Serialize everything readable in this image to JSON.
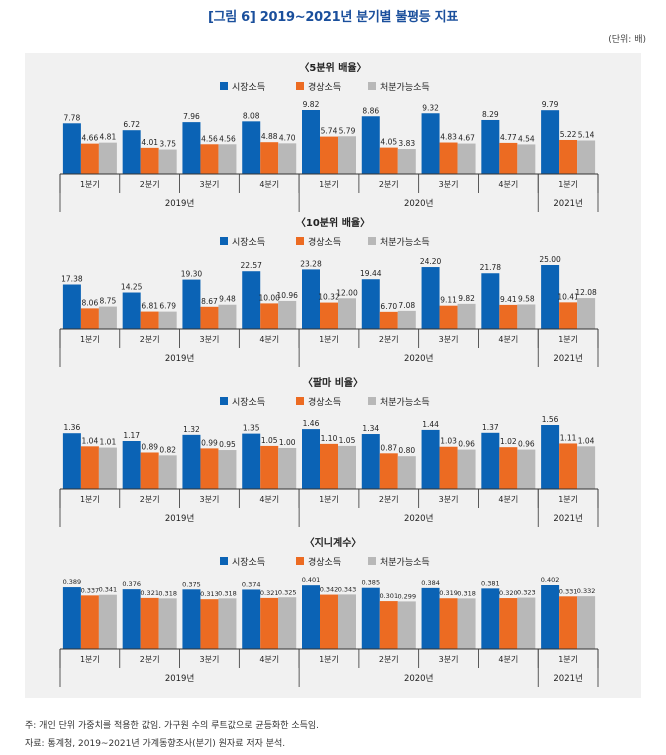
{
  "header": {
    "title": "[그림 6] 2019~2021년 분기별 불평등 지표",
    "unit": "(단위: 배)"
  },
  "footnotes": [
    "주: 개인 단위 가중치를 적용한 값임. 가구원 수의 루트값으로 균등화한 소득임.",
    "자료: 통계청, 2019~2021년 가계동향조사(분기) 원자료 저자 분석."
  ],
  "colors": {
    "market": "#0b63b5",
    "ordinary": "#ec6b22",
    "disposable": "#b8b8b8"
  },
  "chart_data": [
    {
      "type": "bar",
      "title": "〈5분위 배율〉",
      "categories": [
        "1분기",
        "2분기",
        "3분기",
        "4분기",
        "1분기",
        "2분기",
        "3분기",
        "4분기",
        "1분기"
      ],
      "year_groups": [
        {
          "label": "2019년",
          "count": 4
        },
        {
          "label": "2020년",
          "count": 4
        },
        {
          "label": "2021년",
          "count": 1
        }
      ],
      "series": [
        {
          "name": "시장소득",
          "values": [
            7.78,
            6.72,
            7.96,
            8.08,
            9.82,
            8.86,
            9.32,
            8.29,
            9.79
          ],
          "labels": [
            "7.78",
            "6.72",
            "7.96",
            "8.08",
            "9.82",
            "8.86",
            "9.32",
            "8.29",
            "9.79"
          ]
        },
        {
          "name": "경상소득",
          "values": [
            4.66,
            4.01,
            4.56,
            4.88,
            5.74,
            4.05,
            4.83,
            4.77,
            5.22
          ],
          "labels": [
            "4.66",
            "4.01",
            "4.56",
            "4.88",
            "5.74",
            "4.05",
            "4.83",
            "4.77",
            "5.22"
          ]
        },
        {
          "name": "처분가능소득",
          "values": [
            4.81,
            3.75,
            4.56,
            4.7,
            5.79,
            3.83,
            4.67,
            4.54,
            5.14
          ],
          "labels": [
            "4.81",
            "3.75",
            "4.56",
            "4.70",
            "5.79",
            "3.83",
            "4.67",
            "4.54",
            "5.14"
          ]
        }
      ],
      "ylim": [
        0,
        11
      ]
    },
    {
      "type": "bar",
      "title": "〈10분위 배율〉",
      "categories": [
        "1분기",
        "2분기",
        "3분기",
        "4분기",
        "1분기",
        "2분기",
        "3분기",
        "4분기",
        "1분기"
      ],
      "year_groups": [
        {
          "label": "2019년",
          "count": 4
        },
        {
          "label": "2020년",
          "count": 4
        },
        {
          "label": "2021년",
          "count": 1
        }
      ],
      "series": [
        {
          "name": "시장소득",
          "values": [
            17.38,
            14.25,
            19.3,
            22.57,
            23.28,
            19.44,
            24.2,
            21.78,
            25.0
          ],
          "labels": [
            "17.38",
            "14.25",
            "19.30",
            "22.57",
            "23.28",
            "19.44",
            "24.20",
            "21.78",
            "25.00"
          ]
        },
        {
          "name": "경상소득",
          "values": [
            8.06,
            6.81,
            8.67,
            10.0,
            10.32,
            6.7,
            9.11,
            9.41,
            10.41
          ],
          "labels": [
            "8.06",
            "6.81",
            "8.67",
            "10.00",
            "10.32",
            "6.70",
            "9.11",
            "9.41",
            "10.41"
          ]
        },
        {
          "name": "처분가능소득",
          "values": [
            8.75,
            6.79,
            9.48,
            10.96,
            12.0,
            7.08,
            9.82,
            9.58,
            12.08
          ],
          "labels": [
            "8.75",
            "6.79",
            "9.48",
            "10.96",
            "12.00",
            "7.08",
            "9.82",
            "9.58",
            "12.08"
          ]
        }
      ],
      "ylim": [
        0,
        28
      ]
    },
    {
      "type": "bar",
      "title": "〈팔마 비율〉",
      "categories": [
        "1분기",
        "2분기",
        "3분기",
        "4분기",
        "1분기",
        "2분기",
        "3분기",
        "4분기",
        "1분기"
      ],
      "year_groups": [
        {
          "label": "2019년",
          "count": 4
        },
        {
          "label": "2020년",
          "count": 4
        },
        {
          "label": "2021년",
          "count": 1
        }
      ],
      "series": [
        {
          "name": "시장소득",
          "values": [
            1.36,
            1.17,
            1.32,
            1.35,
            1.46,
            1.34,
            1.44,
            1.37,
            1.56
          ],
          "labels": [
            "1.36",
            "1.17",
            "1.32",
            "1.35",
            "1.46",
            "1.34",
            "1.44",
            "1.37",
            "1.56"
          ]
        },
        {
          "name": "경상소득",
          "values": [
            1.04,
            0.89,
            0.99,
            1.05,
            1.1,
            0.87,
            1.03,
            1.02,
            1.11
          ],
          "labels": [
            "1.04",
            "0.89",
            "0.99",
            "1.05",
            "1.10",
            "0.87",
            "1.03",
            "1.02",
            "1.11"
          ]
        },
        {
          "name": "처분가능소득",
          "values": [
            1.01,
            0.82,
            0.95,
            1.0,
            1.05,
            0.8,
            0.96,
            0.96,
            1.04
          ],
          "labels": [
            "1.01",
            "0.82",
            "0.95",
            "1.00",
            "1.05",
            "0.80",
            "0.96",
            "0.96",
            "1.04"
          ]
        }
      ],
      "ylim": [
        0,
        1.75
      ]
    },
    {
      "type": "bar",
      "title": "〈지니계수〉",
      "categories": [
        "1분기",
        "2분기",
        "3분기",
        "4분기",
        "1분기",
        "2분기",
        "3분기",
        "4분기",
        "1분기"
      ],
      "year_groups": [
        {
          "label": "2019년",
          "count": 4
        },
        {
          "label": "2020년",
          "count": 4
        },
        {
          "label": "2021년",
          "count": 1
        }
      ],
      "series": [
        {
          "name": "시장소득",
          "values": [
            0.389,
            0.376,
            0.375,
            0.374,
            0.401,
            0.385,
            0.384,
            0.381,
            0.402
          ],
          "labels": [
            "0.389",
            "0.376",
            "0.375",
            "0.374",
            "0.401",
            "0.385",
            "0.384",
            "0.381",
            "0.402"
          ]
        },
        {
          "name": "경상소득",
          "values": [
            0.337,
            0.321,
            0.313,
            0.321,
            0.342,
            0.301,
            0.319,
            0.32,
            0.331
          ],
          "labels": [
            "0.337",
            "0.321",
            "0.313",
            "0.321",
            "0.342",
            "0.301",
            "0.319",
            "0.320",
            "0.331"
          ]
        },
        {
          "name": "처분가능소득",
          "values": [
            0.341,
            0.318,
            0.318,
            0.325,
            0.343,
            0.299,
            0.318,
            0.323,
            0.332
          ],
          "labels": [
            "0.341",
            "0.318",
            "0.318",
            "0.325",
            "0.343",
            "0.299",
            "0.318",
            "0.323",
            "0.332"
          ]
        }
      ],
      "ylim": [
        0,
        0.45
      ]
    }
  ]
}
